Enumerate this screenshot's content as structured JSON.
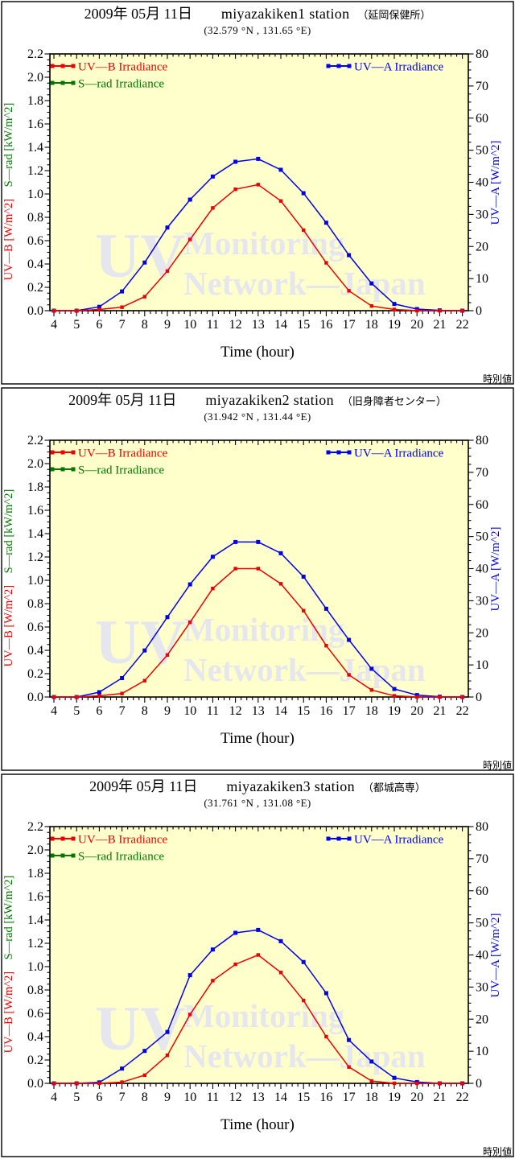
{
  "colors": {
    "uvb": "#ee0000",
    "srad": "#007700",
    "uva": "#0000ee",
    "plot_bg": "#ffffcc",
    "frame": "#000000",
    "watermark": "#e6e6ee",
    "text": "#000000"
  },
  "legend": {
    "uvb_label": "UV—B Irradiance",
    "srad_label": "S—rad Irradiance",
    "uva_label": "UV—A Irradiance"
  },
  "x_axis": {
    "label": "Time (hour)",
    "min": 4,
    "max": 22,
    "major_step": 1,
    "minor_step": 0.25
  },
  "left_axis": {
    "uvb_label": "UV—B [W/m^2]",
    "srad_label": "S—rad [kW/m^2]",
    "min": 0,
    "max": 2.2,
    "major_step": 0.2,
    "minor_step": 0.05
  },
  "right_axis": {
    "label": "UV—A [W/m^2]",
    "min": 0,
    "max": 80,
    "major_step": 10,
    "minor_step": 2.5
  },
  "watermark": {
    "big": "UV",
    "line1": "Monitoring",
    "line2": "Network—Japan"
  },
  "footer_note": "時別値",
  "panels": [
    {
      "title_date": "2009年 05月 11日",
      "title_station": "miyazakiken1 station",
      "title_site": "（延岡保健所）",
      "coords": "(32.579 °N , 131.65 °E)"
    },
    {
      "title_date": "2009年 05月 11日",
      "title_station": "miyazakiken2 station",
      "title_site": "（旧身障者センター）",
      "coords": "(31.942 °N , 131.44 °E)"
    },
    {
      "title_date": "2009年 05月 11日",
      "title_station": "miyazakiken3 station",
      "title_site": "（都城高専）",
      "coords": "(31.761 °N , 131.08 °E)"
    }
  ],
  "chart_data": [
    {
      "type": "line",
      "station": "miyazakiken1 station",
      "xlabel": "Time (hour)",
      "xlim": [
        4,
        22
      ],
      "ylim_left": [
        0,
        2.2
      ],
      "ylim_right": [
        0,
        80
      ],
      "x_hours": [
        4,
        5,
        6,
        7,
        8,
        9,
        10,
        11,
        12,
        13,
        14,
        15,
        16,
        17,
        18,
        19,
        20,
        21,
        22
      ],
      "series": [
        {
          "name": "UV—B Irradiance",
          "axis": "left",
          "unit": "W/m^2",
          "color_key": "uvb",
          "values": [
            0,
            0,
            0.01,
            0.03,
            0.12,
            0.34,
            0.61,
            0.88,
            1.04,
            1.08,
            0.94,
            0.69,
            0.41,
            0.17,
            0.04,
            0.01,
            0,
            0,
            0
          ]
        },
        {
          "name": "S—rad Irradiance",
          "axis": "left",
          "unit": "kW/m^2",
          "color_key": "srad",
          "values": []
        },
        {
          "name": "UV—A Irradiance",
          "axis": "right",
          "unit": "W/m^2",
          "color_key": "uva",
          "values": [
            0,
            0,
            1.2,
            6.0,
            15.0,
            25.9,
            34.6,
            41.8,
            46.4,
            47.3,
            43.9,
            36.6,
            27.4,
            17.3,
            8.5,
            2.1,
            0.5,
            0.1,
            0
          ]
        }
      ]
    },
    {
      "type": "line",
      "station": "miyazakiken2 station",
      "xlabel": "Time (hour)",
      "xlim": [
        4,
        22
      ],
      "ylim_left": [
        0,
        2.2
      ],
      "ylim_right": [
        0,
        80
      ],
      "x_hours": [
        4,
        5,
        6,
        7,
        8,
        9,
        10,
        11,
        12,
        13,
        14,
        15,
        16,
        17,
        18,
        19,
        20,
        21,
        22
      ],
      "series": [
        {
          "name": "UV—B Irradiance",
          "axis": "left",
          "unit": "W/m^2",
          "color_key": "uvb",
          "values": [
            0,
            0,
            0.01,
            0.03,
            0.14,
            0.36,
            0.64,
            0.93,
            1.1,
            1.1,
            0.97,
            0.74,
            0.44,
            0.19,
            0.06,
            0.01,
            0,
            0,
            0
          ]
        },
        {
          "name": "S—rad Irradiance",
          "axis": "left",
          "unit": "kW/m^2",
          "color_key": "srad",
          "values": []
        },
        {
          "name": "UV—A Irradiance",
          "axis": "right",
          "unit": "W/m^2",
          "color_key": "uva",
          "values": [
            0,
            0,
            1.5,
            5.9,
            14.5,
            24.9,
            35.1,
            43.7,
            48.3,
            48.3,
            44.8,
            37.5,
            27.5,
            17.8,
            8.8,
            2.5,
            0.6,
            0.1,
            0
          ]
        }
      ]
    },
    {
      "type": "line",
      "station": "miyazakiken3 station",
      "xlabel": "Time (hour)",
      "xlim": [
        4,
        22
      ],
      "ylim_left": [
        0,
        2.2
      ],
      "ylim_right": [
        0,
        80
      ],
      "x_hours": [
        4,
        5,
        6,
        7,
        8,
        9,
        10,
        11,
        12,
        13,
        14,
        15,
        16,
        17,
        18,
        19,
        20,
        21,
        22
      ],
      "series": [
        {
          "name": "UV—B Irradiance",
          "axis": "left",
          "unit": "W/m^2",
          "color_key": "uvb",
          "values": [
            0,
            0,
            0,
            0.01,
            0.07,
            0.24,
            0.59,
            0.88,
            1.02,
            1.1,
            0.95,
            0.71,
            0.4,
            0.14,
            0.02,
            0,
            0,
            0,
            0
          ]
        },
        {
          "name": "S—rad Irradiance",
          "axis": "left",
          "unit": "kW/m^2",
          "color_key": "srad",
          "values": []
        },
        {
          "name": "UV—A Irradiance",
          "axis": "right",
          "unit": "W/m^2",
          "color_key": "uva",
          "values": [
            0,
            0,
            0.3,
            4.6,
            10.1,
            16.0,
            33.7,
            41.7,
            46.9,
            47.8,
            44.3,
            37.8,
            28.1,
            13.5,
            6.8,
            1.7,
            0.4,
            0,
            0
          ]
        }
      ]
    }
  ]
}
